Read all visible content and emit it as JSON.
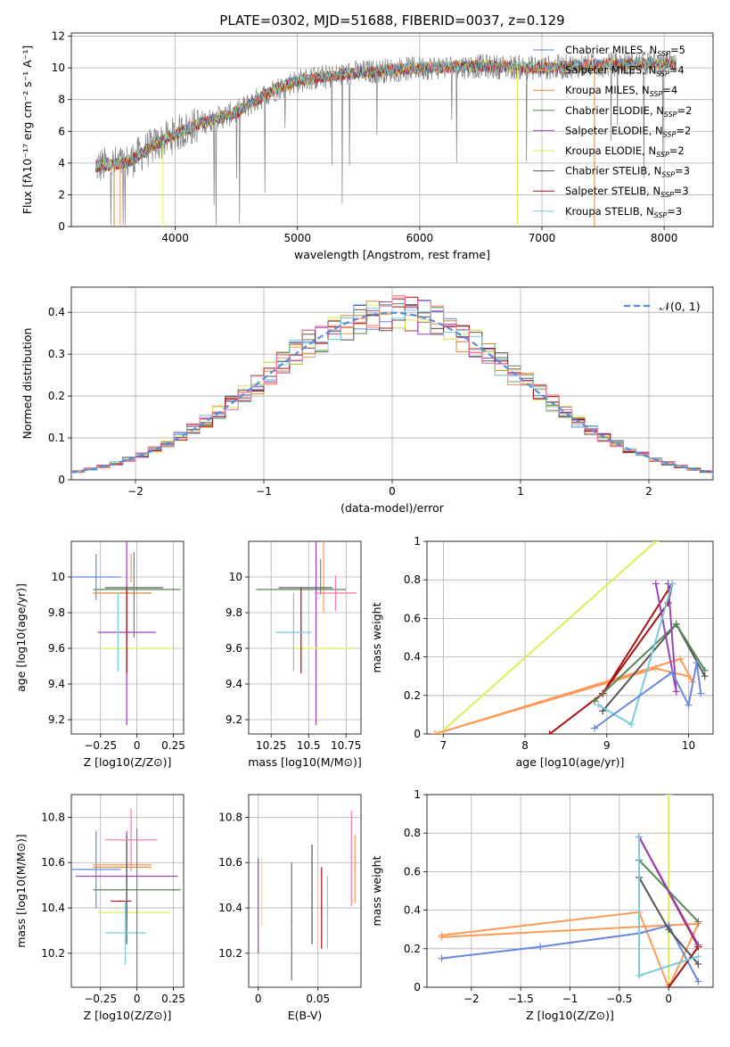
{
  "title": "PLATE=0302, MJD=51688, FIBERID=0037, z=0.129",
  "colors": [
    "#6688dd",
    "#ff9955",
    "#dd8833",
    "#558855",
    "#9944bb",
    "#ddee55",
    "#555555",
    "#aa1111",
    "#77ccdd",
    "#808080",
    "#ff7799"
  ],
  "chart_data": [
    {
      "type": "line",
      "name": "spectrum",
      "xlabel": "wavelength [Angstrom, rest frame]",
      "ylabel": "Flux [fλ10⁻¹⁷ erg cm⁻² s⁻¹ A⁻¹]",
      "xlim": [
        3150,
        8400
      ],
      "ylim": [
        0,
        12.2
      ],
      "xticks": [
        4000,
        5000,
        6000,
        7000,
        8000
      ],
      "yticks": [
        0,
        2,
        4,
        6,
        8,
        10,
        12
      ],
      "legend": [
        "Chabrier MILES, N_SSP=5",
        "Salpeter MILES, N_SSP=4",
        "Kroupa MILES, N_SSP=4",
        "Chabrier ELODIE, N_SSP=2",
        "Salpeter ELODIE, N_SSP=2",
        "Kroupa ELODIE, N_SSP=2",
        "Chabrier STELIB, N_SSP=3",
        "Salpeter STELIB, N_SSP=3",
        "Kroupa STELIB, N_SSP=3"
      ],
      "legend_position": "right",
      "continuum": [
        [
          3350,
          3.8
        ],
        [
          3600,
          4.0
        ],
        [
          3800,
          5.0
        ],
        [
          4000,
          5.8
        ],
        [
          4200,
          6.5
        ],
        [
          4500,
          7.2
        ],
        [
          4800,
          8.6
        ],
        [
          5000,
          9.2
        ],
        [
          5200,
          9.4
        ],
        [
          5500,
          9.7
        ],
        [
          6000,
          10.0
        ],
        [
          6500,
          10.1
        ],
        [
          7000,
          10.0
        ],
        [
          7500,
          10.2
        ],
        [
          8000,
          10.3
        ],
        [
          8100,
          10.4
        ]
      ]
    },
    {
      "type": "line",
      "name": "residuals",
      "xlabel": "(data-model)/error",
      "ylabel": "Normed distribution",
      "xlim": [
        -2.5,
        2.5
      ],
      "ylim": [
        0,
        0.46
      ],
      "xticks": [
        -2,
        -1,
        0,
        1,
        2
      ],
      "yticks": [
        0.0,
        0.1,
        0.2,
        0.3,
        0.4
      ],
      "legend": [
        "𝒩(0, 1)"
      ],
      "legend_position": "top-right"
    },
    {
      "type": "scatter",
      "name": "age-vs-Z",
      "xlabel": "Z [log10(Z/Z⊙)]",
      "ylabel": "age [log10(age/yr)]",
      "xlim": [
        -0.45,
        0.32
      ],
      "ylim": [
        9.12,
        10.2
      ],
      "xticks": [
        -0.25,
        0.0,
        0.25
      ],
      "yticks": [
        9.2,
        9.4,
        9.6,
        9.8,
        10.0
      ],
      "points": [
        {
          "x": -0.28,
          "y": 10.0,
          "xerr": 0.17,
          "yerr": 0.13,
          "c": 0
        },
        {
          "x": -0.04,
          "y": 10.05,
          "xerr": 0.0,
          "yerr": 0.08,
          "c": 1
        },
        {
          "x": -0.1,
          "y": 9.91,
          "xerr": 0.2,
          "yerr": 0.0,
          "c": 2
        },
        {
          "x": 0.0,
          "y": 9.93,
          "xerr": 0.3,
          "yerr": 0.0,
          "c": 3
        },
        {
          "x": -0.07,
          "y": 9.69,
          "xerr": 0.2,
          "yerr": 0.52,
          "c": 4
        },
        {
          "x": 0.0,
          "y": 9.6,
          "xerr": 0.25,
          "yerr": 0.0,
          "c": 5
        },
        {
          "x": -0.02,
          "y": 9.94,
          "xerr": 0.2,
          "yerr": 0.0,
          "c": 6
        },
        {
          "x": -0.07,
          "y": 9.7,
          "xerr": 0.0,
          "yerr": 0.24,
          "c": 7
        },
        {
          "x": -0.13,
          "y": 9.69,
          "xerr": 0.0,
          "yerr": 0.22,
          "c": 8
        },
        {
          "x": -0.02,
          "y": 9.9,
          "xerr": 0.0,
          "yerr": 0.24,
          "c": 9
        }
      ]
    },
    {
      "type": "scatter",
      "name": "age-vs-mass",
      "xlabel": "mass [log10(M/M⊙)]",
      "ylabel": "",
      "xlim": [
        10.1,
        10.85
      ],
      "ylim": [
        9.12,
        10.2
      ],
      "xticks": [
        10.25,
        10.5,
        10.75
      ],
      "yticks": [
        9.2,
        9.4,
        9.6,
        9.8,
        10.0
      ],
      "points": [
        {
          "x": 10.58,
          "y": 10.0,
          "xerr": 0.0,
          "yerr": 0.1,
          "c": 0
        },
        {
          "x": 10.6,
          "y": 10.0,
          "xerr": 0.0,
          "yerr": 0.2,
          "c": 1
        },
        {
          "x": 10.58,
          "y": 9.91,
          "xerr": 0.0,
          "yerr": 0.0,
          "c": 2
        },
        {
          "x": 10.45,
          "y": 9.93,
          "xerr": 0.3,
          "yerr": 0.0,
          "c": 3
        },
        {
          "x": 10.55,
          "y": 9.69,
          "xerr": 0.0,
          "yerr": 0.52,
          "c": 4
        },
        {
          "x": 10.6,
          "y": 9.6,
          "xerr": 0.2,
          "yerr": 0.0,
          "c": 5
        },
        {
          "x": 10.48,
          "y": 9.94,
          "xerr": 0.18,
          "yerr": 0.0,
          "c": 6
        },
        {
          "x": 10.45,
          "y": 9.7,
          "xerr": 0.0,
          "yerr": 0.24,
          "c": 7
        },
        {
          "x": 10.4,
          "y": 9.69,
          "xerr": 0.12,
          "yerr": 0.22,
          "c": 8
        },
        {
          "x": 10.68,
          "y": 9.91,
          "xerr": 0.14,
          "yerr": 0.1,
          "c": 10
        }
      ]
    },
    {
      "type": "line",
      "name": "weight-vs-age",
      "xlabel": "age [log10(age/yr)]",
      "ylabel": "mass weight",
      "xlim": [
        6.8,
        10.3
      ],
      "ylim": [
        0,
        1
      ],
      "xticks": [
        7,
        8,
        9,
        10
      ],
      "yticks": [
        0.0,
        0.2,
        0.4,
        0.6,
        0.8,
        1.0
      ],
      "series": [
        {
          "c": 5,
          "points": [
            [
              6.95,
              0
            ],
            [
              9.6,
              1.0
            ]
          ]
        },
        {
          "c": 1,
          "points": [
            [
              6.9,
              0
            ],
            [
              9.9,
              0.39
            ],
            [
              10.05,
              0.27
            ],
            [
              10.0,
              0.3
            ],
            [
              9.6,
              0.34
            ],
            [
              6.9,
              0.0
            ]
          ]
        },
        {
          "c": 7,
          "points": [
            [
              8.3,
              0
            ],
            [
              8.95,
              0.21
            ],
            [
              9.8,
              0.78
            ],
            [
              9.75,
              0.68
            ],
            [
              8.95,
              0.21
            ]
          ]
        },
        {
          "c": 6,
          "points": [
            [
              8.95,
              0.12
            ],
            [
              9.85,
              0.57
            ],
            [
              10.2,
              0.3
            ],
            [
              9.85,
              0.57
            ],
            [
              8.95,
              0.12
            ]
          ]
        },
        {
          "c": 3,
          "points": [
            [
              8.85,
              0.17
            ],
            [
              9.85,
              0.57
            ],
            [
              10.2,
              0.33
            ]
          ]
        },
        {
          "c": 4,
          "points": [
            [
              9.6,
              0.78
            ],
            [
              9.85,
              0.22
            ],
            [
              9.75,
              0.78
            ]
          ]
        },
        {
          "c": 8,
          "points": [
            [
              8.9,
              0.15
            ],
            [
              9.3,
              0.05
            ],
            [
              9.8,
              0.78
            ]
          ]
        },
        {
          "c": 0,
          "points": [
            [
              8.85,
              0.03
            ],
            [
              9.8,
              0.32
            ],
            [
              10.0,
              0.15
            ],
            [
              10.1,
              0.37
            ],
            [
              10.15,
              0.21
            ]
          ]
        }
      ]
    },
    {
      "type": "scatter",
      "name": "mass-vs-Z",
      "xlabel": "Z [log10(Z/Z⊙)]",
      "ylabel": "mass [log10(M/M⊙)]",
      "xlim": [
        -0.45,
        0.32
      ],
      "ylim": [
        10.05,
        10.9
      ],
      "xticks": [
        -0.25,
        0.0,
        0.25
      ],
      "yticks": [
        10.2,
        10.4,
        10.6,
        10.8
      ],
      "points": [
        {
          "x": -0.28,
          "y": 10.57,
          "xerr": 0.17,
          "yerr": 0.17,
          "c": 0
        },
        {
          "x": -0.1,
          "y": 10.59,
          "xerr": 0.2,
          "yerr": 0.0,
          "c": 1
        },
        {
          "x": -0.1,
          "y": 10.58,
          "xerr": 0.2,
          "yerr": 0.0,
          "c": 2
        },
        {
          "x": 0.0,
          "y": 10.48,
          "xerr": 0.3,
          "yerr": 0.0,
          "c": 3
        },
        {
          "x": -0.07,
          "y": 10.54,
          "xerr": 0.35,
          "yerr": 0.2,
          "c": 4
        },
        {
          "x": -0.02,
          "y": 10.38,
          "xerr": 0.25,
          "yerr": 0.0,
          "c": 5
        },
        {
          "x": -0.07,
          "y": 10.48,
          "xerr": 0.0,
          "yerr": 0.24,
          "c": 6
        },
        {
          "x": -0.11,
          "y": 10.43,
          "xerr": 0.07,
          "yerr": 0.0,
          "c": 7
        },
        {
          "x": -0.08,
          "y": 10.29,
          "xerr": 0.14,
          "yerr": 0.14,
          "c": 8
        },
        {
          "x": 0.0,
          "y": 10.4,
          "xerr": 0.0,
          "yerr": 0.35,
          "c": 9
        },
        {
          "x": -0.04,
          "y": 10.7,
          "xerr": 0.18,
          "yerr": 0.14,
          "c": 10
        }
      ]
    },
    {
      "type": "scatter",
      "name": "mass-vs-EBV",
      "xlabel": "E(B-V)",
      "ylabel": "",
      "xlim": [
        -0.008,
        0.086
      ],
      "ylim": [
        10.05,
        10.9
      ],
      "xticks": [
        0.0,
        0.05
      ],
      "yticks": [
        10.2,
        10.4,
        10.6,
        10.8
      ],
      "points": [
        {
          "x": 0.0,
          "y": 10.41,
          "xerr": 0,
          "yerr": 0.21,
          "c": 4
        },
        {
          "x": 0.003,
          "y": 10.47,
          "xerr": 0,
          "yerr": 0.15,
          "c": 5
        },
        {
          "x": 0.028,
          "y": 10.34,
          "xerr": 0,
          "yerr": 0.26,
          "c": 3
        },
        {
          "x": 0.045,
          "y": 10.46,
          "xerr": 0,
          "yerr": 0.22,
          "c": 6
        },
        {
          "x": 0.053,
          "y": 10.4,
          "xerr": 0,
          "yerr": 0.18,
          "c": 7
        },
        {
          "x": 0.058,
          "y": 10.38,
          "xerr": 0,
          "yerr": 0.16,
          "c": 8
        },
        {
          "x": 0.078,
          "y": 10.62,
          "xerr": 0,
          "yerr": 0.21,
          "c": 10
        },
        {
          "x": 0.081,
          "y": 10.57,
          "xerr": 0,
          "yerr": 0.15,
          "c": 1
        }
      ]
    },
    {
      "type": "line",
      "name": "weight-vs-Z",
      "xlabel": "Z [log10(Z/Z⊙)]",
      "ylabel": "mass weight",
      "xlim": [
        -2.45,
        0.45
      ],
      "ylim": [
        0,
        1
      ],
      "xticks": [
        -2.0,
        -1.5,
        -1.0,
        -0.5,
        0.0
      ],
      "yticks": [
        0.0,
        0.2,
        0.4,
        0.6,
        0.8,
        1.0
      ],
      "series": [
        {
          "c": 5,
          "points": [
            [
              0.0,
              1.0
            ],
            [
              0.0,
              0.0
            ]
          ]
        },
        {
          "c": 1,
          "points": [
            [
              -2.3,
              0.27
            ],
            [
              -0.3,
              0.39
            ],
            [
              0.0,
              0.0
            ],
            [
              0.3,
              0.33
            ],
            [
              -2.3,
              0.26
            ]
          ]
        },
        {
          "c": 0,
          "points": [
            [
              -2.3,
              0.15
            ],
            [
              -1.3,
              0.21
            ],
            [
              -0.3,
              0.28
            ],
            [
              0.0,
              0.32
            ],
            [
              0.3,
              0.03
            ]
          ]
        },
        {
          "c": 7,
          "points": [
            [
              -0.3,
              0.78
            ],
            [
              0.3,
              0.21
            ],
            [
              0.0,
              0.0
            ],
            [
              0.3,
              0.21
            ]
          ]
        },
        {
          "c": 6,
          "points": [
            [
              -0.3,
              0.57
            ],
            [
              0.0,
              0.3
            ],
            [
              0.3,
              0.12
            ]
          ]
        },
        {
          "c": 3,
          "points": [
            [
              -0.3,
              0.66
            ],
            [
              0.3,
              0.34
            ],
            [
              -0.3,
              0.66
            ]
          ]
        },
        {
          "c": 4,
          "points": [
            [
              -0.3,
              0.78
            ],
            [
              0.3,
              0.22
            ]
          ]
        },
        {
          "c": 8,
          "points": [
            [
              -0.3,
              0.78
            ],
            [
              -0.3,
              0.06
            ],
            [
              0.3,
              0.16
            ]
          ]
        }
      ]
    }
  ]
}
